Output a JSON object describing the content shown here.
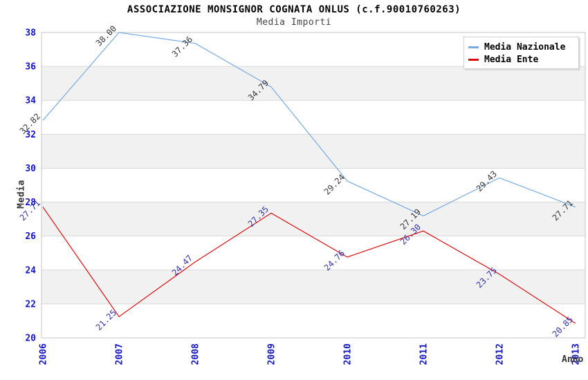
{
  "header": {
    "title": "ASSOCIAZIONE MONSIGNOR COGNATA ONLUS (c.f.90010760263)",
    "subtitle": "Media Importi"
  },
  "chart_data": {
    "type": "line",
    "title": "ASSOCIAZIONE MONSIGNOR COGNATA ONLUS (c.f.90010760263)",
    "subtitle": "Media Importi",
    "xlabel": "Anno",
    "ylabel": "Media",
    "x": [
      2006,
      2007,
      2008,
      2009,
      2010,
      2011,
      2012,
      2013
    ],
    "series": [
      {
        "name": "Media Nazionale",
        "color": "#77ABE0",
        "label_color": "#383838",
        "values": [
          32.82,
          38.0,
          37.36,
          34.79,
          29.24,
          27.19,
          29.43,
          27.71
        ]
      },
      {
        "name": "Media Ente",
        "color": "#DE0B0B",
        "label_color": "#3333AA",
        "values": [
          27.71,
          21.25,
          24.47,
          27.35,
          24.76,
          26.3,
          23.75,
          20.85
        ]
      }
    ],
    "ylim": [
      20,
      38
    ],
    "ytick_step": 2,
    "yticks": [
      20,
      22,
      24,
      26,
      28,
      30,
      32,
      34,
      36,
      38
    ],
    "grid": true,
    "band_fill": "alternating",
    "legend_position": "top-right",
    "colors": {
      "tick_label": "#1313CC",
      "grid_line": "#D9D9D9",
      "band": "#F1F1F1",
      "plot_border": "#C6C6C6",
      "axis_title": "#333333",
      "title": "#000000",
      "subtitle": "#444444",
      "legend_border": "#CFCFCF"
    }
  }
}
